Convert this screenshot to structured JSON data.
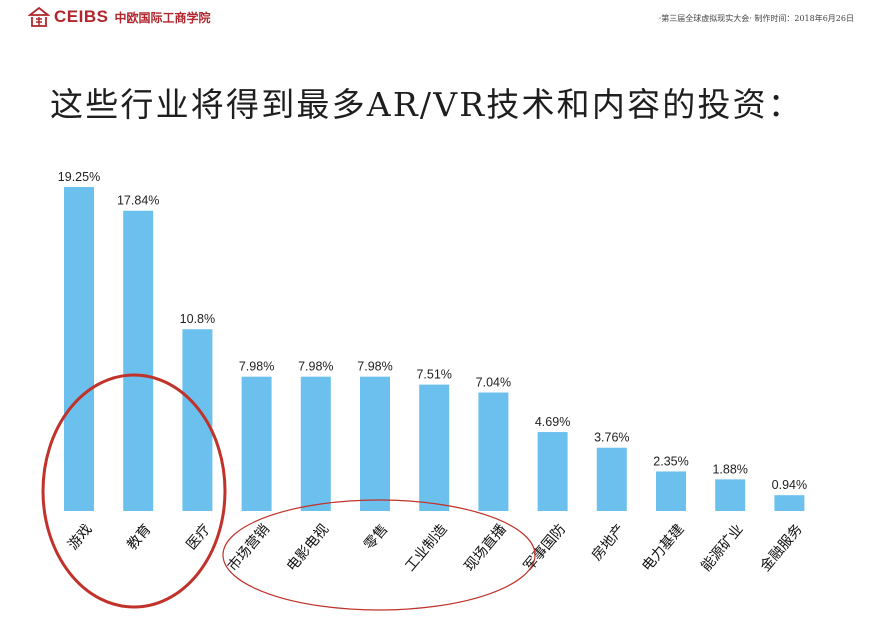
{
  "header": {
    "logo_text": "CEIBS",
    "logo_cn": "中欧国际工商学院",
    "meeting_note": "·第三届全球虚拟现实大会·  制作时间：2018年6月26日"
  },
  "title": "这些行业将得到最多AR/VR技术和内容的投资：",
  "chart_data": {
    "type": "bar",
    "title": "这些行业将得到最多AR/VR技术和内容的投资：",
    "xlabel": "",
    "ylabel": "",
    "ylim": [
      0,
      20
    ],
    "grid": false,
    "categories": [
      "游戏",
      "教育",
      "医疗",
      "市场营销",
      "电影电视",
      "零售",
      "工业制造",
      "现场直播",
      "军事国防",
      "房地产",
      "电力基建",
      "能源矿业",
      "金融服务"
    ],
    "values": [
      19.25,
      17.84,
      10.8,
      7.98,
      7.98,
      7.98,
      7.51,
      7.04,
      4.69,
      3.76,
      2.35,
      1.88,
      0.94
    ],
    "labels": [
      "19.25%",
      "17.84%",
      "10.8%",
      "7.98%",
      "7.98%",
      "7.98%",
      "7.51%",
      "7.04%",
      "4.69%",
      "3.76%",
      "2.35%",
      "1.88%",
      "0.94%"
    ],
    "bar_color": "#6cc0ee",
    "annotation_color": "#c0322a"
  }
}
